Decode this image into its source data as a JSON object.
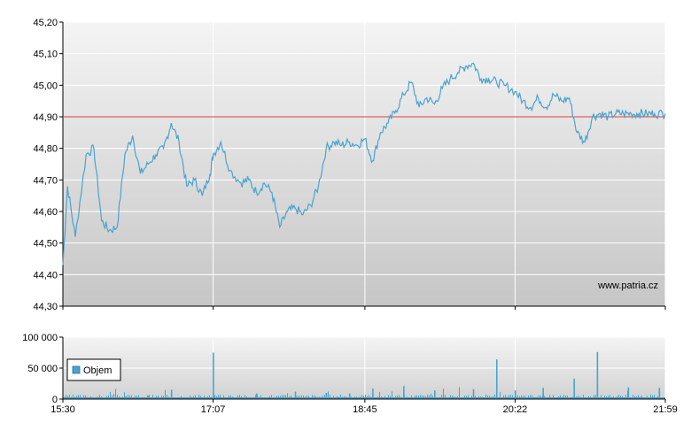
{
  "chart_data": [
    {
      "type": "line",
      "title": "",
      "xlabel": "",
      "ylabel": "",
      "x_ticks": [
        "15:30",
        "17:07",
        "18:45",
        "20:22",
        "21:59"
      ],
      "y_ticks": [
        "45,20",
        "45,10",
        "45,00",
        "44,90",
        "44,80",
        "44,70",
        "44,60",
        "44,50",
        "44,40",
        "44,30"
      ],
      "ylim": [
        44.3,
        45.2
      ],
      "xlim": [
        "15:30",
        "21:59"
      ],
      "grid": true,
      "reference_line": {
        "value": 44.9,
        "color": "#e04040"
      },
      "line_color": "#4aa3cf",
      "watermark": "www.patria.cz",
      "series": [
        {
          "x": [
            "15:30",
            "15:33",
            "15:38",
            "15:45",
            "15:50",
            "15:55",
            "16:00",
            "16:05",
            "16:10",
            "16:15",
            "16:20",
            "16:25",
            "16:30",
            "16:35",
            "16:40",
            "16:45",
            "16:50",
            "16:55",
            "17:00",
            "17:05",
            "17:07",
            "17:12",
            "17:18",
            "17:25",
            "17:30",
            "17:35",
            "17:40",
            "17:45",
            "17:50",
            "17:55",
            "18:00",
            "18:05",
            "18:10",
            "18:15",
            "18:20",
            "18:25",
            "18:30",
            "18:35",
            "18:40",
            "18:45",
            "18:50",
            "18:55",
            "19:00",
            "19:05",
            "19:10",
            "19:15",
            "19:20",
            "19:25",
            "19:30",
            "19:35",
            "19:40",
            "19:45",
            "19:50",
            "19:55",
            "20:00",
            "20:05",
            "20:10",
            "20:15",
            "20:22",
            "20:27",
            "20:32",
            "20:37",
            "20:42",
            "20:47",
            "20:52",
            "20:57",
            "21:02",
            "21:07",
            "21:12",
            "21:17",
            "21:22",
            "21:27",
            "21:32",
            "21:37",
            "21:42",
            "21:47",
            "21:52",
            "21:59"
          ],
          "values": [
            44.43,
            44.68,
            44.52,
            44.78,
            44.8,
            44.57,
            44.54,
            44.55,
            44.78,
            44.84,
            44.72,
            44.75,
            44.78,
            44.8,
            44.88,
            44.82,
            44.68,
            44.7,
            44.65,
            44.72,
            44.78,
            44.82,
            44.73,
            44.69,
            44.7,
            44.66,
            44.69,
            44.66,
            44.55,
            44.6,
            44.61,
            44.59,
            44.62,
            44.68,
            44.8,
            44.82,
            44.81,
            44.82,
            44.81,
            44.83,
            44.76,
            44.85,
            44.88,
            44.92,
            44.97,
            45.01,
            44.93,
            44.96,
            44.94,
            44.99,
            45.02,
            45.04,
            45.06,
            45.07,
            45.02,
            45.02,
            45.01,
            45.0,
            44.98,
            44.95,
            44.93,
            44.96,
            44.93,
            44.97,
            44.95,
            44.96,
            44.85,
            44.82,
            44.9,
            44.91,
            44.9,
            44.91,
            44.91,
            44.91,
            44.91,
            44.91,
            44.91,
            44.91
          ]
        }
      ]
    },
    {
      "type": "bar",
      "title": "",
      "xlabel": "",
      "ylabel": "",
      "x_ticks": [
        "15:30",
        "17:07",
        "18:45",
        "20:22",
        "21:59"
      ],
      "y_ticks": [
        "100 000",
        "50 000",
        "0"
      ],
      "ylim": [
        0,
        100000
      ],
      "grid": true,
      "legend": {
        "label": "Objem",
        "placement": "bottom-left"
      },
      "bar_color": "#4aa3cf",
      "series": [
        {
          "name": "Objem",
          "categories": [
            "15:40",
            "16:10",
            "16:25",
            "16:40",
            "17:07",
            "17:35",
            "18:00",
            "18:20",
            "18:35",
            "18:50",
            "19:10",
            "19:30",
            "19:55",
            "20:10",
            "20:22",
            "20:40",
            "21:00",
            "21:15",
            "21:35",
            "21:55"
          ],
          "values": [
            3000,
            4000,
            5000,
            15000,
            75000,
            9000,
            12000,
            10000,
            9000,
            17000,
            21000,
            14000,
            16000,
            64000,
            14000,
            18000,
            33000,
            76000,
            19000,
            18000
          ]
        }
      ]
    }
  ]
}
